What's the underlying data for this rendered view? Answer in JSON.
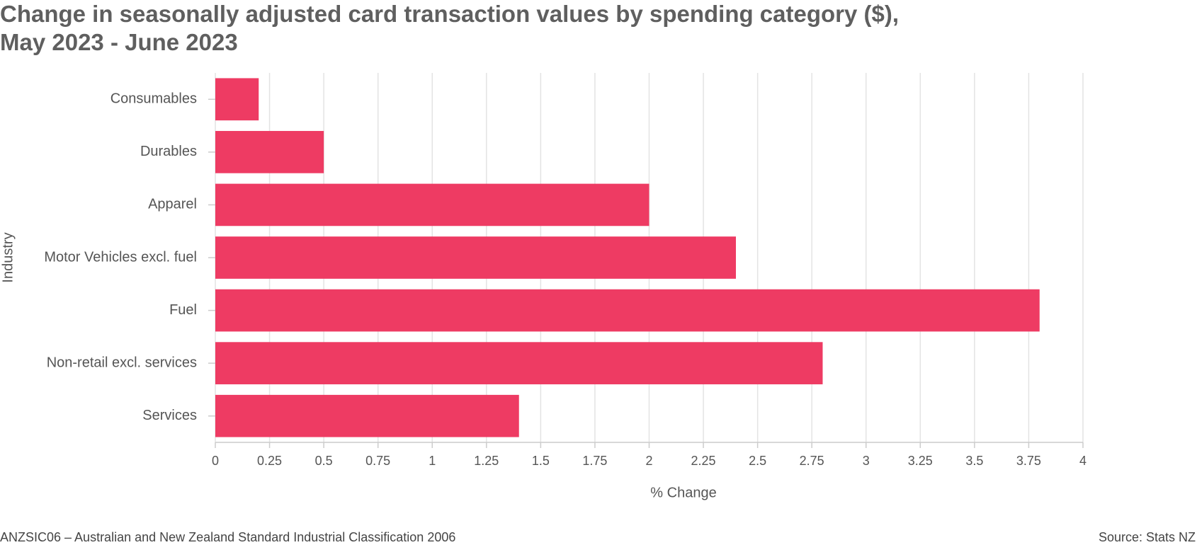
{
  "chart_data": {
    "type": "bar",
    "orientation": "horizontal",
    "title": "Change in seasonally adjusted card transaction values by spending category ($), May 2023 - June 2023",
    "categories": [
      "Consumables",
      "Durables",
      "Apparel",
      "Motor Vehicles excl. fuel",
      "Fuel",
      "Non-retail excl. services",
      "Services"
    ],
    "values": [
      0.2,
      0.5,
      2.0,
      2.4,
      3.8,
      2.8,
      1.4
    ],
    "color": "#ee3b63",
    "xlim": [
      0,
      4
    ],
    "xticks": [
      0,
      0.25,
      0.5,
      0.75,
      1,
      1.25,
      1.5,
      1.75,
      2,
      2.25,
      2.5,
      2.75,
      3,
      3.25,
      3.5,
      3.75,
      4
    ],
    "grid": true,
    "x_label": "% Change",
    "y_label": "Industry",
    "note": "ANZSIC06 – Australian and New Zealand Standard Industrial Classification 2006",
    "source": "Source: Stats NZ"
  }
}
